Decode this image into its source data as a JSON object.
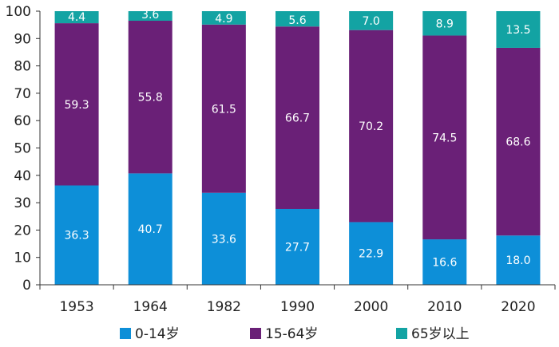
{
  "chart_data": {
    "type": "bar",
    "stacked": true,
    "title": "",
    "xlabel": "",
    "ylabel": "",
    "ylim": [
      0,
      100
    ],
    "yticks": [
      0,
      10,
      20,
      30,
      40,
      50,
      60,
      70,
      80,
      90,
      100
    ],
    "grid": false,
    "legend_position": "bottom",
    "categories": [
      "1953",
      "1964",
      "1982",
      "1990",
      "2000",
      "2010",
      "2020"
    ],
    "series": [
      {
        "name": "0-14岁",
        "color": "#0d8fd8",
        "values": [
          36.3,
          40.7,
          33.6,
          27.7,
          22.9,
          16.6,
          18.0
        ],
        "labels": [
          "36.3",
          "40.7",
          "33.6",
          "27.7",
          "22.9",
          "16.6",
          "18.0"
        ]
      },
      {
        "name": "15-64岁",
        "color": "#6a2077",
        "values": [
          59.3,
          55.8,
          61.5,
          66.7,
          70.2,
          74.5,
          68.6
        ],
        "labels": [
          "59.3",
          "55.8",
          "61.5",
          "66.7",
          "70.2",
          "74.5",
          "68.6"
        ]
      },
      {
        "name": "65岁以上",
        "color": "#13a3a3",
        "values": [
          4.4,
          3.6,
          4.9,
          5.6,
          7.0,
          8.9,
          13.5
        ],
        "labels": [
          "4.4",
          "3.6",
          "4.9",
          "5.6",
          "7.0",
          "8.9",
          "13.5"
        ]
      }
    ]
  }
}
